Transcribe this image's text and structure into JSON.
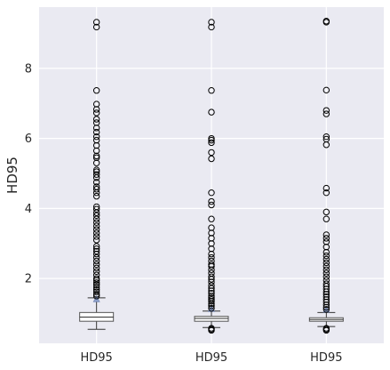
{
  "chart_data": {
    "type": "box",
    "ylabel": "HD95",
    "ylim": [
      0.15,
      9.75
    ],
    "yticks": [
      2,
      4,
      6,
      8
    ],
    "ytick_labels": [
      "2",
      "4",
      "6",
      "8"
    ],
    "grid": true,
    "boxes": [
      {
        "label": "HD95",
        "whisker_low": 0.55,
        "q1": 0.78,
        "median": 0.9,
        "q3": 1.03,
        "whisker_high": 1.45,
        "mean": 1.4,
        "fliers": [
          9.32,
          9.18,
          7.37,
          6.98,
          6.83,
          6.73,
          6.55,
          6.45,
          6.3,
          6.18,
          6.05,
          5.95,
          5.8,
          5.65,
          5.5,
          5.45,
          5.3,
          5.1,
          5.05,
          4.97,
          4.88,
          4.75,
          4.62,
          4.55,
          4.45,
          4.35,
          4.05,
          3.98,
          3.88,
          3.8,
          3.7,
          3.6,
          3.5,
          3.4,
          3.3,
          3.2,
          3.1,
          2.92,
          2.85,
          2.78,
          2.7,
          2.6,
          2.5,
          2.4,
          2.3,
          2.2,
          2.1,
          2.0,
          1.95,
          1.88,
          1.82,
          1.75,
          1.68,
          1.62,
          1.55,
          1.5
        ]
      },
      {
        "label": "HD95",
        "whisker_low": 0.6,
        "q1": 0.78,
        "median": 0.86,
        "q3": 0.92,
        "whisker_high": 1.07,
        "mean": 1.12,
        "fliers": [
          9.32,
          9.18,
          7.37,
          6.75,
          6.0,
          5.95,
          5.88,
          5.6,
          5.42,
          4.45,
          4.2,
          4.1,
          3.7,
          3.45,
          3.3,
          3.15,
          3.0,
          2.85,
          2.7,
          2.6,
          2.5,
          2.4,
          2.35,
          2.25,
          2.15,
          2.05,
          1.98,
          1.9,
          1.8,
          1.72,
          1.65,
          1.58,
          1.5,
          1.45,
          1.4,
          1.35,
          1.28,
          1.22,
          1.15,
          0.58,
          0.55,
          0.52
        ]
      },
      {
        "label": "HD95",
        "whisker_low": 0.63,
        "q1": 0.78,
        "median": 0.83,
        "q3": 0.88,
        "whisker_high": 1.03,
        "mean": 1.1,
        "fliers": [
          9.35,
          9.32,
          7.38,
          6.8,
          6.7,
          6.05,
          5.98,
          5.82,
          4.58,
          4.45,
          3.9,
          3.7,
          3.25,
          3.15,
          3.05,
          2.9,
          2.75,
          2.65,
          2.55,
          2.45,
          2.35,
          2.25,
          2.15,
          2.05,
          1.95,
          1.85,
          1.78,
          1.7,
          1.62,
          1.55,
          1.48,
          1.4,
          1.33,
          1.25,
          1.18,
          1.12,
          0.58,
          0.55,
          0.52
        ]
      }
    ]
  }
}
